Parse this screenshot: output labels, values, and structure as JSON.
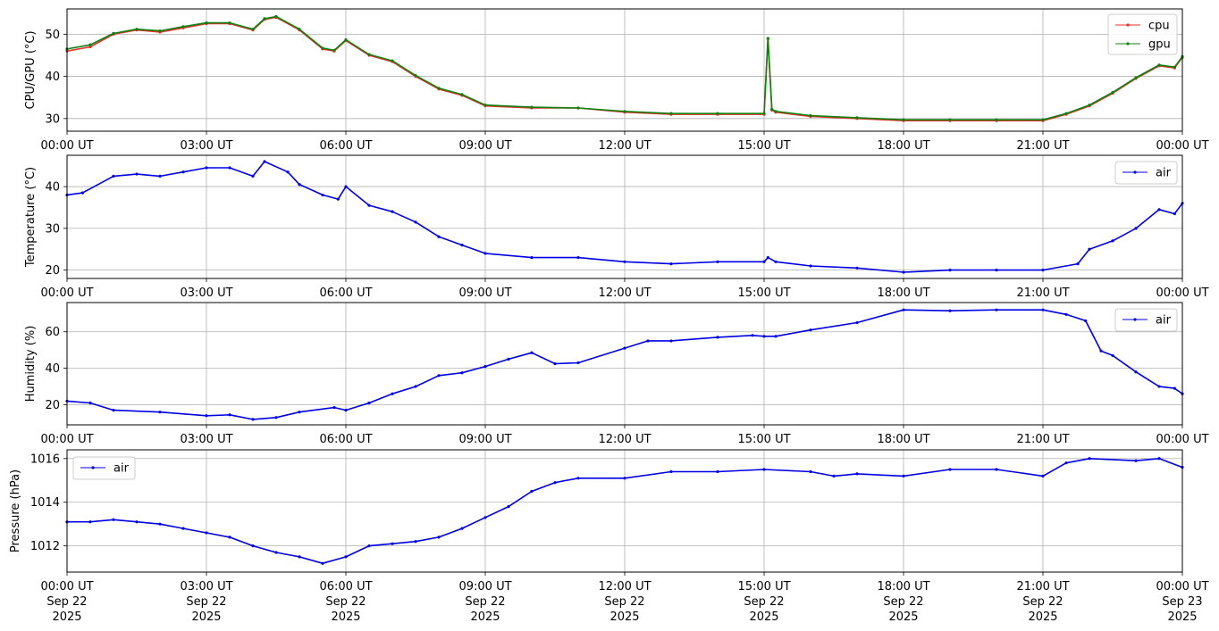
{
  "colors": {
    "cpu": "#e8312a",
    "gpu": "#108010",
    "air": "#0000e6",
    "grid": "#b0b0b0"
  },
  "x_ticks": [
    {
      "time": "00:00 UT",
      "date": [
        "Sep 22",
        "2025"
      ]
    },
    {
      "time": "03:00 UT",
      "date": [
        "Sep 22",
        "2025"
      ]
    },
    {
      "time": "06:00 UT",
      "date": [
        "Sep 22",
        "2025"
      ]
    },
    {
      "time": "09:00 UT",
      "date": [
        "Sep 22",
        "2025"
      ]
    },
    {
      "time": "12:00 UT",
      "date": [
        "Sep 22",
        "2025"
      ]
    },
    {
      "time": "15:00 UT",
      "date": [
        "Sep 22",
        "2025"
      ]
    },
    {
      "time": "18:00 UT",
      "date": [
        "Sep 22",
        "2025"
      ]
    },
    {
      "time": "21:00 UT",
      "date": [
        "Sep 22",
        "2025"
      ]
    },
    {
      "time": "00:00 UT",
      "date": [
        "Sep 23",
        "2025"
      ]
    }
  ],
  "chart_data": [
    {
      "type": "line",
      "ylabel": "CPU/GPU (°C)",
      "ylim": [
        27,
        56
      ],
      "yticks": [
        30,
        40,
        50
      ],
      "x_range": [
        "2025-09-22 00:00",
        "2025-09-23 00:00"
      ],
      "grid": true,
      "legend": "top-right",
      "x": [
        "00:00",
        "00:30",
        "01:00",
        "01:30",
        "02:00",
        "02:30",
        "03:00",
        "03:30",
        "04:00",
        "04:15",
        "04:30",
        "05:00",
        "05:30",
        "05:45",
        "06:00",
        "06:30",
        "07:00",
        "07:30",
        "08:00",
        "08:30",
        "09:00",
        "10:00",
        "11:00",
        "12:00",
        "13:00",
        "14:00",
        "15:00",
        "15:05",
        "15:10",
        "15:15",
        "16:00",
        "17:00",
        "18:00",
        "19:00",
        "20:00",
        "21:00",
        "21:30",
        "22:00",
        "22:30",
        "23:00",
        "23:30",
        "23:50",
        "24:00"
      ],
      "series": [
        {
          "name": "cpu",
          "values": [
            46,
            47,
            50,
            51,
            50.5,
            51.5,
            52.5,
            52.5,
            51,
            53.5,
            54,
            51,
            46.5,
            46,
            48.5,
            45,
            43.5,
            40,
            37,
            35.5,
            33,
            32.5,
            32.5,
            31.5,
            31,
            31,
            31,
            49,
            32,
            31.5,
            30.5,
            30,
            29.5,
            29.5,
            29.5,
            29.5,
            31,
            33,
            36,
            39.5,
            42.5,
            42,
            44.5
          ]
        },
        {
          "name": "gpu",
          "values": [
            46.5,
            47.5,
            50.2,
            51.2,
            50.8,
            51.8,
            52.7,
            52.7,
            51.2,
            53.7,
            54.2,
            51.2,
            46.7,
            46.2,
            48.7,
            45.2,
            43.7,
            40.2,
            37.2,
            35.7,
            33.2,
            32.7,
            32.5,
            31.7,
            31.2,
            31.2,
            31.2,
            49,
            32.2,
            31.7,
            30.7,
            30.2,
            29.7,
            29.7,
            29.7,
            29.7,
            31.2,
            33.2,
            36.2,
            39.7,
            42.7,
            42.2,
            44.7
          ]
        }
      ]
    },
    {
      "type": "line",
      "ylabel": "Temperature (°C)",
      "ylim": [
        18,
        47.5
      ],
      "yticks": [
        20,
        30,
        40
      ],
      "x_range": [
        "2025-09-22 00:00",
        "2025-09-23 00:00"
      ],
      "grid": true,
      "legend": "top-right",
      "x": [
        "00:00",
        "00:20",
        "01:00",
        "01:30",
        "02:00",
        "02:30",
        "03:00",
        "03:30",
        "04:00",
        "04:15",
        "04:45",
        "05:00",
        "05:30",
        "05:50",
        "06:00",
        "06:30",
        "07:00",
        "07:30",
        "08:00",
        "08:30",
        "09:00",
        "10:00",
        "11:00",
        "12:00",
        "13:00",
        "14:00",
        "15:00",
        "15:05",
        "15:15",
        "16:00",
        "17:00",
        "18:00",
        "19:00",
        "20:00",
        "21:00",
        "21:45",
        "22:00",
        "22:30",
        "23:00",
        "23:30",
        "23:50",
        "24:00"
      ],
      "series": [
        {
          "name": "air",
          "values": [
            38,
            38.5,
            42.5,
            43,
            42.5,
            43.5,
            44.5,
            44.5,
            42.5,
            46,
            43.5,
            40.5,
            38,
            37,
            40,
            35.5,
            34,
            31.5,
            28,
            26,
            24,
            23,
            23,
            22,
            21.5,
            22,
            22,
            23,
            22,
            21,
            20.5,
            19.5,
            20,
            20,
            20,
            21.5,
            25,
            27,
            30,
            34.5,
            33.5,
            36
          ]
        }
      ]
    },
    {
      "type": "line",
      "ylabel": "Humidity (%)",
      "ylim": [
        9,
        76
      ],
      "yticks": [
        20,
        40,
        60
      ],
      "x_range": [
        "2025-09-22 00:00",
        "2025-09-23 00:00"
      ],
      "grid": true,
      "legend": "top-right",
      "x": [
        "00:00",
        "00:30",
        "01:00",
        "02:00",
        "03:00",
        "03:30",
        "04:00",
        "04:30",
        "05:00",
        "05:45",
        "06:00",
        "06:30",
        "07:00",
        "07:30",
        "08:00",
        "08:30",
        "09:00",
        "09:30",
        "10:00",
        "10:30",
        "11:00",
        "12:00",
        "12:30",
        "13:00",
        "14:00",
        "14:45",
        "15:00",
        "15:15",
        "16:00",
        "17:00",
        "18:00",
        "19:00",
        "20:00",
        "21:00",
        "21:30",
        "21:55",
        "22:15",
        "22:30",
        "23:00",
        "23:30",
        "23:50",
        "24:00"
      ],
      "series": [
        {
          "name": "air",
          "values": [
            22,
            21,
            17,
            16,
            14,
            14.5,
            12,
            13,
            16,
            18.5,
            17,
            21,
            26,
            30,
            36,
            37.5,
            41,
            45,
            48.5,
            42.5,
            43,
            51,
            55,
            55,
            57,
            58,
            57.5,
            57.5,
            61,
            65,
            72,
            71.5,
            72,
            72,
            69.5,
            66,
            49.5,
            47,
            38,
            30,
            29,
            26
          ]
        }
      ]
    },
    {
      "type": "line",
      "ylabel": "Pressure (hPa)",
      "ylim": [
        1010.8,
        1016.4
      ],
      "yticks": [
        1012,
        1014,
        1016
      ],
      "x_range": [
        "2025-09-22 00:00",
        "2025-09-23 00:00"
      ],
      "grid": true,
      "legend": "top-left",
      "x": [
        "00:00",
        "00:30",
        "01:00",
        "01:30",
        "02:00",
        "02:30",
        "03:00",
        "03:30",
        "04:00",
        "04:30",
        "05:00",
        "05:30",
        "06:00",
        "06:30",
        "07:00",
        "07:30",
        "08:00",
        "08:30",
        "09:00",
        "09:30",
        "10:00",
        "10:30",
        "11:00",
        "12:00",
        "13:00",
        "14:00",
        "15:00",
        "16:00",
        "16:30",
        "17:00",
        "18:00",
        "19:00",
        "20:00",
        "21:00",
        "21:30",
        "22:00",
        "23:00",
        "23:30",
        "24:00"
      ],
      "series": [
        {
          "name": "air",
          "values": [
            1013.1,
            1013.1,
            1013.2,
            1013.1,
            1013,
            1012.8,
            1012.6,
            1012.4,
            1012,
            1011.7,
            1011.5,
            1011.2,
            1011.5,
            1012,
            1012.1,
            1012.2,
            1012.4,
            1012.8,
            1013.3,
            1013.8,
            1014.5,
            1014.9,
            1015.1,
            1015.1,
            1015.4,
            1015.4,
            1015.5,
            1015.4,
            1015.2,
            1015.3,
            1015.2,
            1015.5,
            1015.5,
            1015.2,
            1015.8,
            1016,
            1015.9,
            1016,
            1015.6
          ]
        }
      ]
    }
  ]
}
